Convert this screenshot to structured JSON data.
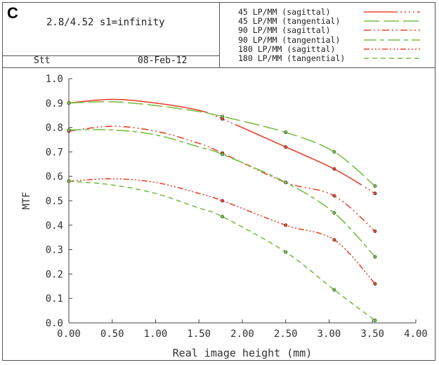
{
  "panel_label": "C",
  "lens_spec": "2.8/4.52 s1=infinity",
  "author": "Stt",
  "date": "08-Feb-12",
  "colors": {
    "sagittal": "#e8452e",
    "tangential": "#78be44",
    "axis": "#444444"
  },
  "chart_data": {
    "type": "line",
    "xlabel": "Real image height (mm)",
    "ylabel": "MTF",
    "xlim": [
      0,
      4
    ],
    "ylim": [
      0,
      1
    ],
    "x_ticks": [
      "0.00",
      "0.50",
      "1.00",
      "1.50",
      "2.00",
      "2.50",
      "3.00",
      "3.50",
      "4.00"
    ],
    "y_ticks": [
      "0.0",
      "0.1",
      "0.2",
      "0.3",
      "0.4",
      "0.5",
      "0.6",
      "0.7",
      "0.8",
      "0.9",
      "1.0"
    ],
    "grid": false,
    "legend_position": "top-right",
    "series": [
      {
        "name": "45 LP/MM (sagittal)",
        "kind": "sagittal",
        "dash": "solid-dotted",
        "x": [
          0,
          0.5,
          1.0,
          1.5,
          1.77,
          2.5,
          3.06,
          3.53
        ],
        "y": [
          0.9,
          0.915,
          0.9,
          0.87,
          0.835,
          0.72,
          0.63,
          0.53
        ]
      },
      {
        "name": "45 LP/MM (tangential)",
        "kind": "tangential",
        "dash": "long-dash",
        "x": [
          0,
          0.5,
          1.0,
          1.5,
          1.77,
          2.5,
          3.06,
          3.53
        ],
        "y": [
          0.9,
          0.905,
          0.89,
          0.865,
          0.845,
          0.78,
          0.7,
          0.56
        ]
      },
      {
        "name": "90 LP/MM (sagittal)",
        "kind": "sagittal",
        "dash": "dash-dot-dot",
        "x": [
          0,
          0.5,
          1.0,
          1.5,
          1.77,
          2.5,
          3.06,
          3.53
        ],
        "y": [
          0.785,
          0.805,
          0.785,
          0.735,
          0.695,
          0.575,
          0.52,
          0.375
        ]
      },
      {
        "name": "90 LP/MM (tangential)",
        "kind": "tangential",
        "dash": "long-short",
        "x": [
          0,
          0.5,
          1.0,
          1.5,
          1.77,
          2.5,
          3.06,
          3.53
        ],
        "y": [
          0.79,
          0.79,
          0.77,
          0.72,
          0.69,
          0.575,
          0.45,
          0.27
        ]
      },
      {
        "name": "180 LP/MM (sagittal)",
        "kind": "sagittal",
        "dash": "dash-dot-dot-dot",
        "x": [
          0,
          0.5,
          1.0,
          1.5,
          1.77,
          2.5,
          3.06,
          3.53
        ],
        "y": [
          0.58,
          0.59,
          0.575,
          0.53,
          0.5,
          0.4,
          0.34,
          0.16
        ]
      },
      {
        "name": "180 LP/MM (tangential)",
        "kind": "tangential",
        "dash": "short-dash",
        "x": [
          0,
          0.5,
          1.0,
          1.5,
          1.77,
          2.5,
          3.06,
          3.53
        ],
        "y": [
          0.58,
          0.565,
          0.53,
          0.47,
          0.435,
          0.29,
          0.135,
          0.01
        ]
      }
    ]
  }
}
